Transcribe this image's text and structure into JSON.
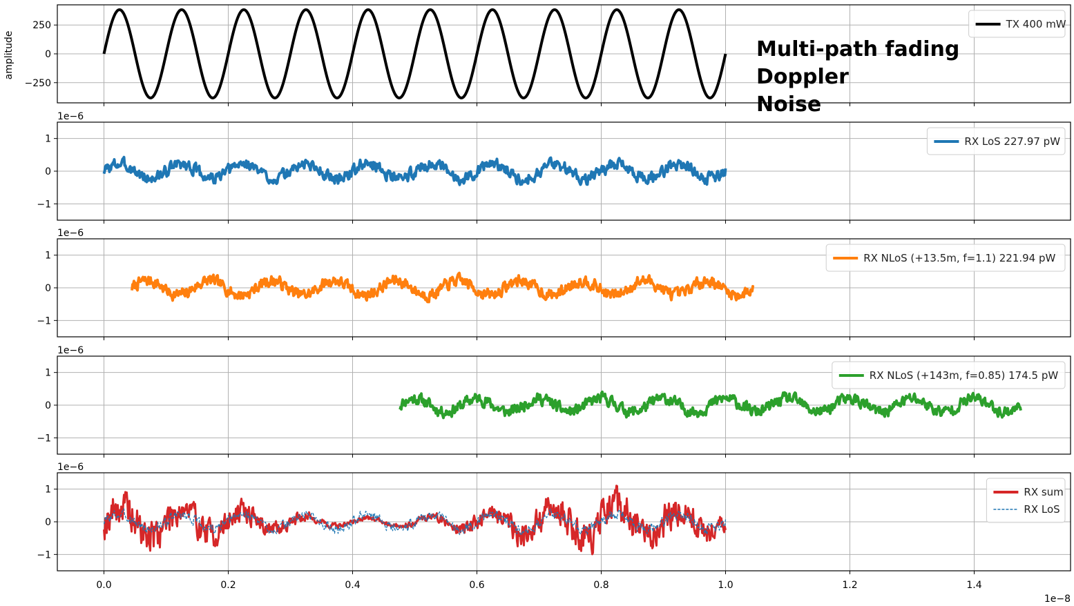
{
  "overlay_text": {
    "line1": "Multi-path fading",
    "line2": "Doppler",
    "line3": "Noise"
  },
  "chart_data": [
    {
      "type": "line",
      "ylabel": "amplitude",
      "ylim": [
        -425,
        425
      ],
      "yticks": [
        250,
        0,
        -250
      ],
      "ytick_labels": [
        "250",
        "0",
        "−250"
      ],
      "offset_label": "",
      "grid": true,
      "legend_placement": "top-right",
      "series": [
        {
          "name": "TX 400 mW",
          "color": "#000000",
          "style": "solid",
          "kind": "sine",
          "x_start": 0.0,
          "x_end": 1.0,
          "amplitude": 383,
          "cycles": 10,
          "width": 4
        }
      ]
    },
    {
      "type": "line",
      "ylim": [
        -1.5,
        1.5
      ],
      "yticks": [
        1,
        0,
        -1
      ],
      "ytick_labels": [
        "1",
        "0",
        "−1"
      ],
      "offset_label": "1e−6",
      "grid": true,
      "legend_placement": "top-right",
      "series": [
        {
          "name": "RX LoS 227.97 pW",
          "color": "#1f77b4",
          "style": "solid",
          "kind": "noisy",
          "x_start": 0.0,
          "x_end": 1.0,
          "amplitude": 0.22,
          "noise": 0.17,
          "cycles": 10,
          "width": 4,
          "seed": 3
        }
      ]
    },
    {
      "type": "line",
      "ylim": [
        -1.5,
        1.5
      ],
      "yticks": [
        1,
        0,
        -1
      ],
      "ytick_labels": [
        "1",
        "0",
        "−1"
      ],
      "offset_label": "1e−6",
      "grid": true,
      "legend_placement": "top-right",
      "series": [
        {
          "name": "RX NLoS (+13.5m, f=1.1) 221.94 pW",
          "color": "#ff7f0e",
          "style": "solid",
          "kind": "noisy",
          "x_start": 0.045,
          "x_end": 1.045,
          "amplitude": 0.22,
          "noise": 0.17,
          "cycles": 10,
          "width": 4,
          "seed": 7
        }
      ]
    },
    {
      "type": "line",
      "ylim": [
        -1.5,
        1.5
      ],
      "yticks": [
        1,
        0,
        -1
      ],
      "ytick_labels": [
        "1",
        "0",
        "−1"
      ],
      "offset_label": "1e−6",
      "grid": true,
      "legend_placement": "top-right",
      "series": [
        {
          "name": "RX NLoS (+143m, f=0.85) 174.5 pW",
          "color": "#2ca02c",
          "style": "solid",
          "kind": "noisy",
          "x_start": 0.475,
          "x_end": 1.475,
          "amplitude": 0.2,
          "noise": 0.17,
          "cycles": 10,
          "width": 4,
          "seed": 11
        }
      ]
    },
    {
      "type": "line",
      "ylim": [
        -1.5,
        1.5
      ],
      "yticks": [
        1,
        0,
        -1
      ],
      "ytick_labels": [
        "1",
        "0",
        "−1"
      ],
      "offset_label": "1e−6",
      "grid": true,
      "legend_placement": "top-right",
      "xticks": [
        0.0,
        0.2,
        0.4,
        0.6,
        0.8,
        1.0,
        1.2,
        1.4
      ],
      "xtick_labels": [
        "0.0",
        "0.2",
        "0.4",
        "0.6",
        "0.8",
        "1.0",
        "1.2",
        "1.4"
      ],
      "x_offset_label": "1e−8",
      "series": [
        {
          "name": "RX sum",
          "color": "#d62728",
          "style": "solid",
          "kind": "sum",
          "x_start": 0.0,
          "x_end": 1.0,
          "amplitude": 0.35,
          "noise": 0.3,
          "cycles": 10,
          "width": 3,
          "seed": 19
        },
        {
          "name": "RX LoS",
          "color": "#1f77b4",
          "style": "dashed",
          "kind": "noisy",
          "x_start": 0.0,
          "x_end": 1.0,
          "amplitude": 0.22,
          "noise": 0.15,
          "cycles": 10,
          "width": 1.3,
          "seed": 3
        }
      ]
    }
  ],
  "x_axis": {
    "xlim": [
      -0.075,
      1.555
    ],
    "xticks": [
      0.0,
      0.2,
      0.4,
      0.6,
      0.8,
      1.0,
      1.2,
      1.4
    ]
  }
}
